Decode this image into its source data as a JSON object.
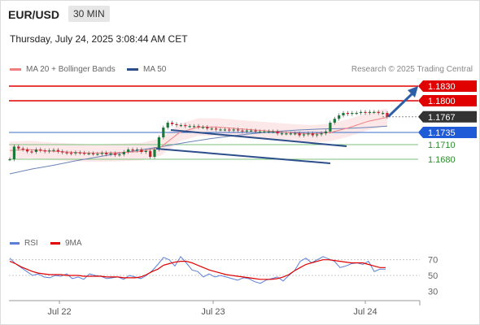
{
  "header": {
    "symbol": "EUR/USD",
    "timeframe": "30 MIN"
  },
  "timestamp": "Thursday, July 24, 2025 3:08:44 AM CET",
  "legend": {
    "ma20_label": "MA 20 + Bollinger Bands",
    "ma50_label": "MA 50",
    "ma20_color": "#f08080",
    "ma50_color": "#2c4f8c"
  },
  "credit": "Research © 2025 Trading Central",
  "rsi_legend": {
    "rsi_label": "RSI",
    "ma_label": "9MA",
    "rsi_color": "#5b7fd6",
    "ma_color": "#e00000"
  },
  "chart_data": [
    {
      "type": "line",
      "ylim": [
        1.164,
        1.184
      ],
      "x_labels": [
        "Jul 22",
        "Jul 23",
        "Jul 24"
      ],
      "levels": [
        {
          "value": 1.183,
          "label": "1.1830",
          "role": "resistance",
          "color": "#e00000"
        },
        {
          "value": 1.18,
          "label": "1.1800",
          "role": "resistance",
          "color": "#e00000"
        },
        {
          "value": 1.1767,
          "label": "1.1767",
          "role": "last",
          "color": "#333333"
        },
        {
          "value": 1.1735,
          "label": "1.1735",
          "role": "pivot",
          "color": "#1f5bd6"
        },
        {
          "value": 1.171,
          "label": "1.1710",
          "role": "support",
          "color": "#2e8b2e"
        },
        {
          "value": 1.168,
          "label": "1.1680",
          "role": "support",
          "color": "#2e8b2e"
        }
      ],
      "price_series": [
        1.168,
        1.1706,
        1.1702,
        1.17,
        1.1696,
        1.1695,
        1.17,
        1.1698,
        1.1696,
        1.1698,
        1.1699,
        1.1696,
        1.1694,
        1.1693,
        1.1692,
        1.1694,
        1.1693,
        1.1692,
        1.1692,
        1.1691,
        1.1691,
        1.1693,
        1.169,
        1.1692,
        1.1689,
        1.169,
        1.1695,
        1.17,
        1.1698,
        1.17,
        1.1695,
        1.1697,
        1.1685,
        1.17,
        1.1725,
        1.1745,
        1.1755,
        1.1752,
        1.175,
        1.175,
        1.1748,
        1.1748,
        1.1748,
        1.1746,
        1.1746,
        1.1743,
        1.1743,
        1.1741,
        1.1741,
        1.1741,
        1.1739,
        1.1741,
        1.1739,
        1.1737,
        1.1739,
        1.1739,
        1.1737,
        1.1737,
        1.1737,
        1.1737,
        1.1737,
        1.1733,
        1.1733,
        1.1733,
        1.1733,
        1.1733,
        1.1729,
        1.1731,
        1.1733,
        1.1729,
        1.1731,
        1.1733,
        1.1737,
        1.1755,
        1.1763,
        1.177,
        1.1775,
        1.1773,
        1.1775,
        1.1775,
        1.1777,
        1.1775,
        1.1777,
        1.1777,
        1.1775,
        1.1775,
        1.1767
      ],
      "ma50_series": [
        1.165,
        1.166,
        1.1668,
        1.1677,
        1.1685,
        1.1693,
        1.17,
        1.1707,
        1.1715,
        1.1722,
        1.1728,
        1.1733,
        1.1737,
        1.174,
        1.1742,
        1.1743,
        1.1745,
        1.1748
      ],
      "ma20_series": [
        1.1698,
        1.17,
        1.1697,
        1.1695,
        1.1693,
        1.1693,
        1.1694,
        1.1696,
        1.1705,
        1.1735,
        1.1746,
        1.1746,
        1.1743,
        1.174,
        1.1737,
        1.1734,
        1.1732,
        1.1735,
        1.1745,
        1.1758,
        1.1766
      ],
      "channel_upper": [
        [
          1.1777,
          1.1745
        ]
      ],
      "channel_lower": [
        [
          1.1745,
          1.1715
        ]
      ],
      "forecast": {
        "from": 1.1767,
        "to": 1.183
      }
    },
    {
      "type": "line",
      "ylim": [
        20,
        80
      ],
      "y_ticks": [
        70,
        50,
        30
      ],
      "series": [
        {
          "name": "RSI",
          "values": [
            72,
            65,
            60,
            55,
            50,
            52,
            48,
            47,
            50,
            49,
            52,
            46,
            48,
            45,
            52,
            50,
            49,
            46,
            47,
            48,
            45,
            50,
            48,
            46,
            50,
            56,
            64,
            73,
            70,
            62,
            74,
            66,
            57,
            55,
            48,
            52,
            48,
            50,
            48,
            46,
            44,
            47,
            46,
            42,
            40,
            44,
            46,
            48,
            43,
            50,
            56,
            68,
            72,
            66,
            70,
            74,
            71,
            68,
            60,
            62,
            65,
            66,
            64,
            68,
            55,
            58,
            58
          ]
        },
        {
          "name": "9MA",
          "values": [
            68,
            65,
            61,
            58,
            55,
            53,
            52,
            51,
            51,
            51,
            50,
            50,
            50,
            49,
            49,
            49,
            49,
            48,
            48,
            48,
            47,
            47,
            47,
            48,
            51,
            55,
            58,
            63,
            65,
            67,
            68,
            68,
            66,
            63,
            60,
            57,
            55,
            53,
            51,
            50,
            49,
            48,
            47,
            46,
            45,
            45,
            45,
            46,
            48,
            51,
            56,
            60,
            64,
            66,
            68,
            70,
            70,
            69,
            68,
            67,
            66,
            66,
            66,
            64,
            62,
            60,
            60
          ]
        }
      ]
    }
  ]
}
